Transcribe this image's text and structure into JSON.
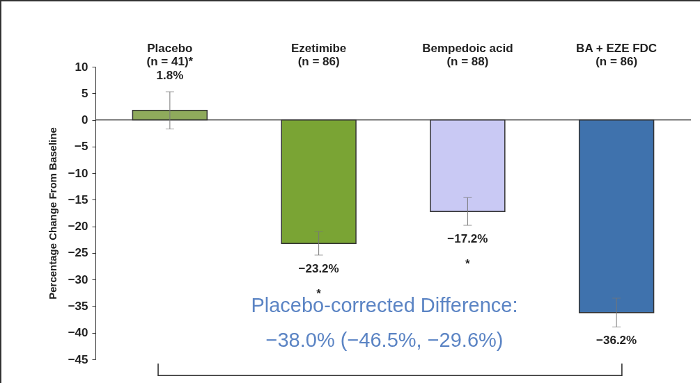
{
  "chart_data": {
    "type": "bar",
    "categories": [
      "Placebo\n(n = 41)*",
      "Ezetimibe\n(n = 86)",
      "Bempedoic acid\n(n = 88)",
      "BA + EZE FDC\n(n = 86)"
    ],
    "values": [
      1.8,
      -23.2,
      -17.2,
      -36.2
    ],
    "colors": [
      "#8faa5c",
      "#7aa434",
      "#c9c9f4",
      "#3f72ad"
    ],
    "errors": [
      3.5,
      2.2,
      2.6,
      2.7
    ],
    "value_labels": [
      "1.8%",
      "−23.2%\n*",
      "−17.2%\n*",
      "−36.2%"
    ],
    "ylabel": "Percentage Change From Baseline",
    "ylim": [
      -45,
      10
    ],
    "yticks": [
      -45,
      -40,
      -35,
      -30,
      -25,
      -20,
      -15,
      -10,
      -5,
      0,
      5,
      10
    ],
    "grid": false,
    "legend": false,
    "ref_lines": [
      {
        "axis": "y",
        "value": 0,
        "color": "#333333"
      }
    ],
    "annotations": [
      "Placebo-corrected Difference:\n−38.0% (−46.5%, −29.6%)"
    ]
  }
}
